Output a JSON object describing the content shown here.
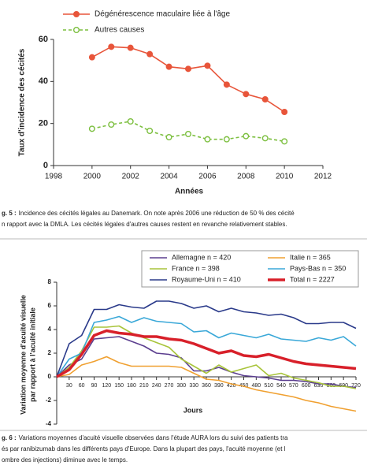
{
  "chart_data": [
    {
      "type": "line",
      "legend": "top-left",
      "xlabel": "Années",
      "ylabel": "Taux d'incidence des cécités",
      "x": [
        2000,
        2001,
        2002,
        2003,
        2004,
        2005,
        2006,
        2007,
        2008,
        2009,
        2010
      ],
      "xlim": [
        1998,
        2012
      ],
      "xticks": [
        1998,
        2000,
        2002,
        2004,
        2006,
        2008,
        2010,
        2012
      ],
      "ylim": [
        0,
        60
      ],
      "yticks": [
        0,
        20,
        40,
        60
      ],
      "series": [
        {
          "name": "Dégénérescence maculaire liée à l'âge",
          "color": "#e8553a",
          "linestyle": "solid",
          "marker": "filled",
          "values": [
            51.5,
            56.5,
            56,
            53,
            47,
            46,
            47.5,
            38.5,
            34,
            31.5,
            25.5
          ]
        },
        {
          "name": "Autres causes",
          "color": "#7cbf3f",
          "linestyle": "dashed",
          "marker": "open",
          "values": [
            17.5,
            19.5,
            21,
            16.5,
            13.5,
            15,
            12.5,
            12.5,
            14,
            13,
            11.5
          ]
        }
      ]
    },
    {
      "type": "line",
      "legend": "top-right",
      "xlabel": "Jours",
      "ylabel": [
        "Variation moyenne d'acuité visuelle",
        "par rapport à l'acuité initiale"
      ],
      "x": [
        0,
        30,
        60,
        90,
        120,
        150,
        180,
        210,
        240,
        270,
        300,
        330,
        360,
        390,
        420,
        450,
        480,
        510,
        540,
        570,
        600,
        630,
        660,
        690,
        720
      ],
      "xlim": [
        0,
        720
      ],
      "xticks": [
        30,
        60,
        90,
        120,
        150,
        180,
        210,
        240,
        270,
        300,
        330,
        360,
        390,
        420,
        450,
        480,
        510,
        540,
        570,
        600,
        630,
        660,
        690,
        720
      ],
      "ylim": [
        -4,
        8
      ],
      "yticks": [
        -4,
        -2,
        0,
        2,
        4,
        6,
        8
      ],
      "series": [
        {
          "name": "Allemagne n = 420",
          "color": "#5b3e8f",
          "values": [
            0,
            1.0,
            1.5,
            3.2,
            3.3,
            3.4,
            3.0,
            2.6,
            2.0,
            1.9,
            1.6,
            0.5,
            0.5,
            0.8,
            0.4,
            0.1,
            0.0,
            -0.1,
            -0.3,
            -0.3,
            -0.4,
            -0.6,
            -0.6,
            -0.8,
            -0.9
          ]
        },
        {
          "name": "Italie n = 365",
          "color": "#f0a030",
          "values": [
            0,
            0.2,
            1.0,
            1.3,
            1.7,
            1.2,
            0.9,
            0.9,
            0.9,
            0.9,
            0.8,
            0.3,
            -0.2,
            -0.3,
            -0.6,
            -0.8,
            -1.1,
            -1.3,
            -1.5,
            -1.7,
            -2.0,
            -2.2,
            -2.5,
            -2.7,
            -2.9
          ]
        },
        {
          "name": "France n = 398",
          "color": "#a8c43a",
          "values": [
            0,
            0.8,
            2.2,
            4.2,
            4.2,
            4.3,
            3.7,
            3.3,
            2.9,
            2.5,
            1.5,
            0.9,
            0.3,
            1.0,
            0.4,
            0.7,
            1.0,
            0.1,
            0.3,
            -0.1,
            -0.3,
            -0.5,
            -0.8,
            -0.8,
            -1.0
          ]
        },
        {
          "name": "Pays-Bas n = 350",
          "color": "#3aa8d8",
          "values": [
            0,
            1.5,
            2.0,
            4.6,
            4.8,
            5.1,
            4.6,
            5.0,
            4.7,
            4.6,
            4.5,
            3.8,
            3.9,
            3.3,
            3.7,
            3.5,
            3.3,
            3.6,
            3.2,
            3.1,
            3.0,
            3.3,
            3.1,
            3.4,
            2.6
          ]
        },
        {
          "name": "Royaume-Uni n = 410",
          "color": "#2a3a8a",
          "values": [
            0,
            2.8,
            3.5,
            5.7,
            5.7,
            6.1,
            5.9,
            5.8,
            6.4,
            6.4,
            6.2,
            5.8,
            6.0,
            5.5,
            5.8,
            5.5,
            5.4,
            5.2,
            5.3,
            5.0,
            4.5,
            4.5,
            4.6,
            4.6,
            4.1
          ]
        },
        {
          "name": "Total n = 2227",
          "color": "#d8202a",
          "linewidth": "thick",
          "values": [
            0,
            0.6,
            1.9,
            3.5,
            3.9,
            3.7,
            3.6,
            3.4,
            3.4,
            3.2,
            3.1,
            2.8,
            2.4,
            2.0,
            2.2,
            1.8,
            1.7,
            1.9,
            1.6,
            1.3,
            1.1,
            1.0,
            0.9,
            0.8,
            0.7
          ]
        }
      ]
    }
  ],
  "captions": [
    {
      "label": "g. 5 :",
      "lines": [
        "Incidence des cécités légales au Danemark. On note après 2006 une réduction de 50 % des cécité",
        "n rapport avec la DMLA. Les cécités légales d'autres causes restent en revanche relativement stables."
      ]
    },
    {
      "label": "g. 6 :",
      "lines": [
        "Variations moyennes d'acuité visuelle observées dans l'étude AURA lors du suivi des patients tra",
        "és par ranibizumab dans les différents pays d'Europe. Dans la plupart des pays, l'acuité moyenne (et l",
        "ombre des injections) diminue avec le temps."
      ]
    }
  ]
}
